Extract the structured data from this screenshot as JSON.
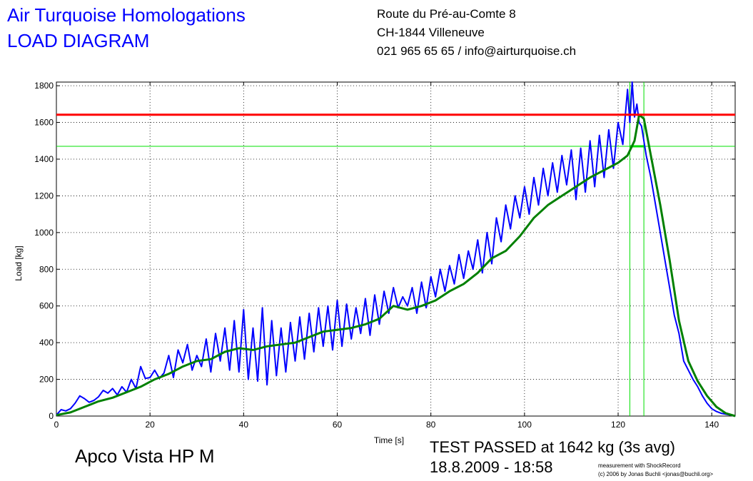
{
  "header": {
    "title_line1": "Air Turquoise Homologations",
    "title_line2": "LOAD DIAGRAM",
    "address_line1": "Route du Pré-au-Comte 8",
    "address_line2": "CH-1844 Villeneuve",
    "address_line3": "021 965 65 65 / info@airturquoise.ch"
  },
  "footer": {
    "product": "Apco Vista HP M",
    "result_line1": "TEST PASSED at 1642 kg (3s avg)",
    "result_line2": "18.8.2009 - 18:58",
    "credit_line1": "measurement with ShockRecord",
    "credit_line2": "(c) 2006 by Jonas Buchli <jonas@buchli.org>"
  },
  "colors": {
    "raw_load": "#0000ff",
    "avg_load": "#008000",
    "limit_line": "#ff0000",
    "marker_lines": "#00e000"
  },
  "chart_data": {
    "type": "line",
    "xlabel": "Time [s]",
    "ylabel": "Load [kg]",
    "xlim": [
      0,
      145
    ],
    "ylim": [
      0,
      1820
    ],
    "x_ticks": [
      0,
      20,
      40,
      60,
      80,
      100,
      120,
      140
    ],
    "y_ticks": [
      0,
      200,
      400,
      600,
      800,
      1000,
      1200,
      1400,
      1600,
      1800
    ],
    "grid": true,
    "series": [
      {
        "key": "raw",
        "x": [
          0,
          1,
          2,
          3,
          4,
          5,
          6,
          7,
          8,
          9,
          10,
          11,
          12,
          13,
          14,
          15,
          16,
          17,
          18,
          19,
          20,
          21,
          22,
          23,
          24,
          25,
          26,
          27,
          28,
          29,
          30,
          31,
          32,
          33,
          34,
          35,
          36,
          37,
          38,
          39,
          40,
          41,
          42,
          43,
          44,
          45,
          46,
          47,
          48,
          49,
          50,
          51,
          52,
          53,
          54,
          55,
          56,
          57,
          58,
          59,
          60,
          61,
          62,
          63,
          64,
          65,
          66,
          67,
          68,
          69,
          70,
          71,
          72,
          73,
          74,
          75,
          76,
          77,
          78,
          79,
          80,
          81,
          82,
          83,
          84,
          85,
          86,
          87,
          88,
          89,
          90,
          91,
          92,
          93,
          94,
          95,
          96,
          97,
          98,
          99,
          100,
          101,
          102,
          103,
          104,
          105,
          106,
          107,
          108,
          109,
          110,
          111,
          112,
          113,
          114,
          115,
          116,
          117,
          118,
          119,
          120,
          121,
          122,
          122.5,
          123,
          123.5,
          124,
          124.5,
          125,
          126,
          127,
          128,
          129,
          130,
          131,
          132,
          133,
          134,
          135,
          136,
          137,
          138,
          139,
          140,
          141,
          142,
          143,
          144,
          145
        ],
        "values": [
          5,
          35,
          28,
          40,
          70,
          110,
          95,
          75,
          85,
          105,
          140,
          125,
          150,
          115,
          160,
          130,
          200,
          150,
          270,
          205,
          210,
          250,
          205,
          235,
          330,
          210,
          360,
          290,
          390,
          250,
          330,
          270,
          420,
          240,
          450,
          300,
          480,
          250,
          520,
          240,
          580,
          200,
          480,
          190,
          590,
          170,
          520,
          220,
          480,
          240,
          510,
          300,
          540,
          310,
          560,
          350,
          590,
          380,
          600,
          360,
          630,
          380,
          610,
          420,
          590,
          450,
          640,
          440,
          660,
          500,
          680,
          560,
          700,
          590,
          650,
          600,
          700,
          560,
          730,
          590,
          760,
          650,
          800,
          680,
          820,
          720,
          880,
          750,
          900,
          800,
          960,
          780,
          1000,
          830,
          1080,
          950,
          1150,
          1020,
          1200,
          1080,
          1250,
          1100,
          1300,
          1150,
          1350,
          1200,
          1380,
          1220,
          1420,
          1260,
          1450,
          1180,
          1460,
          1220,
          1500,
          1250,
          1530,
          1300,
          1560,
          1350,
          1600,
          1480,
          1780,
          1600,
          1820,
          1630,
          1700,
          1600,
          1580,
          1420,
          1300,
          1150,
          1000,
          850,
          700,
          550,
          450,
          300,
          250,
          200,
          160,
          110,
          70,
          40,
          25,
          15,
          10,
          5,
          0
        ]
      },
      {
        "key": "avg",
        "x": [
          0,
          3,
          6,
          9,
          12,
          15,
          18,
          21,
          24,
          27,
          30,
          33,
          36,
          39,
          42,
          45,
          48,
          51,
          54,
          57,
          60,
          63,
          66,
          69,
          72,
          75,
          78,
          81,
          84,
          87,
          90,
          93,
          96,
          99,
          102,
          105,
          108,
          111,
          114,
          117,
          120,
          122,
          123.5,
          124.5,
          125.5,
          127,
          129,
          131,
          133,
          135,
          137,
          139,
          141,
          143,
          145
        ],
        "values": [
          5,
          20,
          50,
          80,
          100,
          130,
          160,
          200,
          230,
          270,
          300,
          310,
          350,
          370,
          360,
          380,
          390,
          400,
          430,
          460,
          470,
          480,
          500,
          530,
          600,
          580,
          600,
          630,
          680,
          720,
          780,
          860,
          900,
          980,
          1080,
          1150,
          1200,
          1250,
          1300,
          1340,
          1380,
          1420,
          1500,
          1642,
          1620,
          1420,
          1150,
          850,
          520,
          300,
          190,
          110,
          50,
          15,
          0
        ]
      }
    ],
    "limit_line_y": 1642,
    "marker_line_y": 1470,
    "marker_x": [
      122.5,
      125.5
    ]
  }
}
